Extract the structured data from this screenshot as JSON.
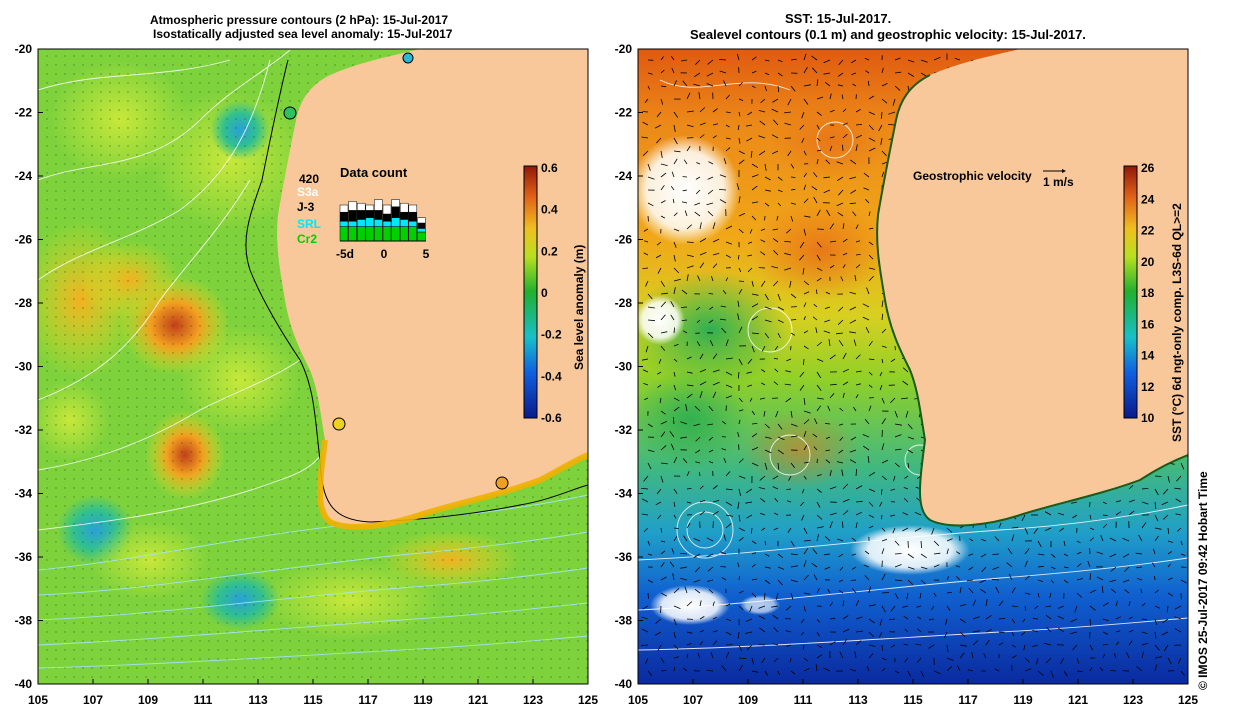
{
  "left_panel": {
    "title_line1": "Atmospheric pressure contours (2 hPa): 15-Jul-2017",
    "title_line2": "Isostatically adjusted sea level anomaly: 15-Jul-2017",
    "x_ticks": [
      "105",
      "107",
      "109",
      "111",
      "113",
      "115",
      "117",
      "119",
      "121",
      "123",
      "125"
    ],
    "y_ticks": [
      "-20",
      "-22",
      "-24",
      "-26",
      "-28",
      "-30",
      "-32",
      "-34",
      "-36",
      "-38",
      "-40"
    ],
    "colorbar": {
      "label": "Sea level anomaly (m)",
      "ticks": [
        "0.6",
        "0.4",
        "0.2",
        "0",
        "-0.2",
        "-0.4",
        "-0.6"
      ]
    },
    "data_count": {
      "title": "Data count",
      "total": "420",
      "missions": [
        "S3a",
        "J-3",
        "SRL",
        "Cr2"
      ],
      "mission_colors": [
        "#ffffff",
        "#000000",
        "#00e8ff",
        "#00d000"
      ],
      "axis_ticks": [
        "-5d",
        "0",
        "5"
      ]
    }
  },
  "right_panel": {
    "title_line1": "SST: 15-Jul-2017.",
    "title_line2": "Sealevel contours (0.1 m) and geostrophic velocity: 15-Jul-2017.",
    "x_ticks": [
      "105",
      "107",
      "109",
      "111",
      "113",
      "115",
      "117",
      "119",
      "121",
      "123",
      "125"
    ],
    "y_ticks": [
      "-20",
      "-22",
      "-24",
      "-26",
      "-28",
      "-30",
      "-32",
      "-34",
      "-36",
      "-38",
      "-40"
    ],
    "colorbar": {
      "label": "SST (°C) 6d ngt-only comp. L3S-6d QL>=2",
      "ticks": [
        "26",
        "24",
        "22",
        "20",
        "18",
        "16",
        "14",
        "12",
        "10"
      ]
    },
    "velocity_legend": {
      "label": "Geostrophic velocity",
      "scale": "1 m/s"
    }
  },
  "credit": "© IMOS 25-Jul-2017 09:42 Hobart Time",
  "colors": {
    "land": "#f9c89a",
    "coast": "#000000",
    "contour": "#ffffff"
  }
}
